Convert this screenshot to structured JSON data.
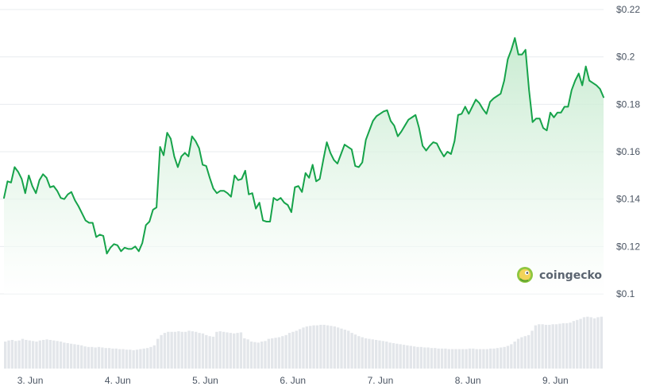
{
  "brand": {
    "name": "coingecko",
    "icon": "gecko-logo-icon"
  },
  "colors": {
    "line": "#16a34a",
    "area_top": "#bfe8c9",
    "area_bottom": "#ffffff",
    "grid": "#e8ecef",
    "volume": "#e3e6ea"
  },
  "chart_data": {
    "type": "line",
    "title": "",
    "xlabel": "",
    "ylabel": "",
    "x_ticks": [
      "3. Jun",
      "4. Jun",
      "5. Jun",
      "6. Jun",
      "7. Jun",
      "8. Jun",
      "9. Jun"
    ],
    "y_ticks": [
      "$0.22",
      "$0.2",
      "$0.18",
      "$0.16",
      "$0.14",
      "$0.12",
      "$0.1"
    ],
    "ylim": [
      0.1,
      0.22
    ],
    "grid": true,
    "x_start_day": 2.7,
    "x_end_day": 9.55,
    "series": [
      {
        "values": [
          0.1405,
          0.1475,
          0.147,
          0.1535,
          0.1515,
          0.1485,
          0.1425,
          0.15,
          0.1455,
          0.1425,
          0.148,
          0.1505,
          0.149,
          0.145,
          0.1455,
          0.1435,
          0.1405,
          0.14,
          0.142,
          0.143,
          0.1395,
          0.137,
          0.134,
          0.131,
          0.13,
          0.13,
          0.124,
          0.125,
          0.1245,
          0.117,
          0.1195,
          0.121,
          0.1205,
          0.118,
          0.1195,
          0.119,
          0.119,
          0.12,
          0.118,
          0.1215,
          0.129,
          0.1305,
          0.1355,
          0.1365,
          0.162,
          0.1585,
          0.168,
          0.1655,
          0.158,
          0.1535,
          0.158,
          0.1595,
          0.158,
          0.1665,
          0.1645,
          0.1615,
          0.1545,
          0.154,
          0.149,
          0.1445,
          0.1425,
          0.1435,
          0.1435,
          0.1425,
          0.141,
          0.15,
          0.148,
          0.1485,
          0.152,
          0.142,
          0.1425,
          0.136,
          0.1385,
          0.131,
          0.1305,
          0.1305,
          0.1405,
          0.1395,
          0.1405,
          0.1385,
          0.1375,
          0.1345,
          0.145,
          0.1455,
          0.143,
          0.151,
          0.149,
          0.1545,
          0.1475,
          0.1485,
          0.1565,
          0.164,
          0.1595,
          0.1565,
          0.155,
          0.159,
          0.163,
          0.162,
          0.161,
          0.154,
          0.1535,
          0.1555,
          0.165,
          0.169,
          0.173,
          0.175,
          0.176,
          0.177,
          0.1775,
          0.173,
          0.171,
          0.1665,
          0.1685,
          0.171,
          0.1735,
          0.1745,
          0.1755,
          0.17,
          0.1625,
          0.1605,
          0.1625,
          0.164,
          0.1635,
          0.1605,
          0.158,
          0.16,
          0.159,
          0.1645,
          0.1755,
          0.176,
          0.179,
          0.176,
          0.179,
          0.182,
          0.1805,
          0.178,
          0.176,
          0.181,
          0.1825,
          0.1835,
          0.1845,
          0.19,
          0.199,
          0.203,
          0.208,
          0.201,
          0.201,
          0.203,
          0.186,
          0.1725,
          0.174,
          0.174,
          0.17,
          0.169,
          0.1765,
          0.1745,
          0.1765,
          0.1765,
          0.179,
          0.179,
          0.186,
          0.19,
          0.193,
          0.188,
          0.196,
          0.19,
          0.189,
          0.188,
          0.1865,
          0.183
        ]
      }
    ],
    "volume": [
      0.5,
      0.52,
      0.53,
      0.51,
      0.52,
      0.55,
      0.53,
      0.52,
      0.51,
      0.5,
      0.52,
      0.53,
      0.54,
      0.53,
      0.52,
      0.51,
      0.5,
      0.48,
      0.47,
      0.46,
      0.45,
      0.44,
      0.43,
      0.41,
      0.4,
      0.4,
      0.39,
      0.4,
      0.39,
      0.38,
      0.38,
      0.37,
      0.37,
      0.36,
      0.36,
      0.35,
      0.35,
      0.34,
      0.35,
      0.36,
      0.37,
      0.38,
      0.4,
      0.43,
      0.55,
      0.62,
      0.66,
      0.68,
      0.68,
      0.68,
      0.69,
      0.68,
      0.68,
      0.7,
      0.69,
      0.68,
      0.66,
      0.65,
      0.62,
      0.6,
      0.59,
      0.68,
      0.69,
      0.68,
      0.67,
      0.66,
      0.65,
      0.66,
      0.67,
      0.56,
      0.54,
      0.5,
      0.49,
      0.48,
      0.5,
      0.51,
      0.55,
      0.56,
      0.57,
      0.58,
      0.6,
      0.62,
      0.66,
      0.68,
      0.7,
      0.73,
      0.76,
      0.78,
      0.79,
      0.8,
      0.8,
      0.81,
      0.81,
      0.8,
      0.79,
      0.78,
      0.76,
      0.74,
      0.72,
      0.7,
      0.66,
      0.63,
      0.6,
      0.58,
      0.56,
      0.55,
      0.54,
      0.53,
      0.52,
      0.51,
      0.5,
      0.48,
      0.47,
      0.46,
      0.45,
      0.44,
      0.43,
      0.42,
      0.41,
      0.4,
      0.4,
      0.39,
      0.39,
      0.38,
      0.38,
      0.37,
      0.37,
      0.37,
      0.36,
      0.36,
      0.36,
      0.36,
      0.36,
      0.36,
      0.37,
      0.37,
      0.36,
      0.36,
      0.36,
      0.36,
      0.37,
      0.37,
      0.38,
      0.39,
      0.4,
      0.42,
      0.45,
      0.5,
      0.55,
      0.58,
      0.6,
      0.62,
      0.7,
      0.8,
      0.82,
      0.82,
      0.81,
      0.81,
      0.82,
      0.82,
      0.83,
      0.84,
      0.84,
      0.85,
      0.88,
      0.9,
      0.92,
      0.95,
      0.96,
      0.95,
      0.93,
      0.95,
      0.96
    ]
  }
}
